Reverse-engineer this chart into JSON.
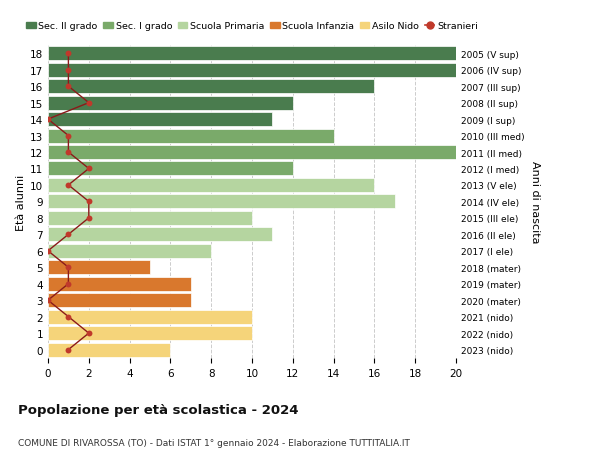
{
  "ages": [
    18,
    17,
    16,
    15,
    14,
    13,
    12,
    11,
    10,
    9,
    8,
    7,
    6,
    5,
    4,
    3,
    2,
    1,
    0
  ],
  "years_labels": [
    "2005 (V sup)",
    "2006 (IV sup)",
    "2007 (III sup)",
    "2008 (II sup)",
    "2009 (I sup)",
    "2010 (III med)",
    "2011 (II med)",
    "2012 (I med)",
    "2013 (V ele)",
    "2014 (IV ele)",
    "2015 (III ele)",
    "2016 (II ele)",
    "2017 (I ele)",
    "2018 (mater)",
    "2019 (mater)",
    "2020 (mater)",
    "2021 (nido)",
    "2022 (nido)",
    "2023 (nido)"
  ],
  "bar_values": [
    20,
    20,
    16,
    12,
    11,
    14,
    20,
    12,
    16,
    17,
    10,
    11,
    8,
    5,
    7,
    7,
    10,
    10,
    6
  ],
  "bar_colors": [
    "#4a7c4e",
    "#4a7c4e",
    "#4a7c4e",
    "#4a7c4e",
    "#4a7c4e",
    "#7aaa6a",
    "#7aaa6a",
    "#7aaa6a",
    "#b5d5a0",
    "#b5d5a0",
    "#b5d5a0",
    "#b5d5a0",
    "#b5d5a0",
    "#d9782d",
    "#d9782d",
    "#d9782d",
    "#f5d47a",
    "#f5d47a",
    "#f5d47a"
  ],
  "stranieri_values": [
    1,
    1,
    1,
    2,
    0,
    1,
    1,
    2,
    1,
    2,
    2,
    1,
    0,
    1,
    1,
    0,
    1,
    2,
    1
  ],
  "legend_labels": [
    "Sec. II grado",
    "Sec. I grado",
    "Scuola Primaria",
    "Scuola Infanzia",
    "Asilo Nido",
    "Stranieri"
  ],
  "legend_colors": [
    "#4a7c4e",
    "#7aaa6a",
    "#b5d5a0",
    "#d9782d",
    "#f5d47a",
    "#c0392b"
  ],
  "title1": "Popolazione per età scolastica - 2024",
  "title2": "COMUNE DI RIVAROSSA (TO) - Dati ISTAT 1° gennaio 2024 - Elaborazione TUTTITALIA.IT",
  "ylabel_left": "Età alunni",
  "ylabel_right": "Anni di nascita",
  "xlim": [
    0,
    20
  ],
  "xticks": [
    0,
    2,
    4,
    6,
    8,
    10,
    12,
    14,
    16,
    18,
    20
  ],
  "background_color": "#ffffff",
  "grid_color": "#cccccc"
}
